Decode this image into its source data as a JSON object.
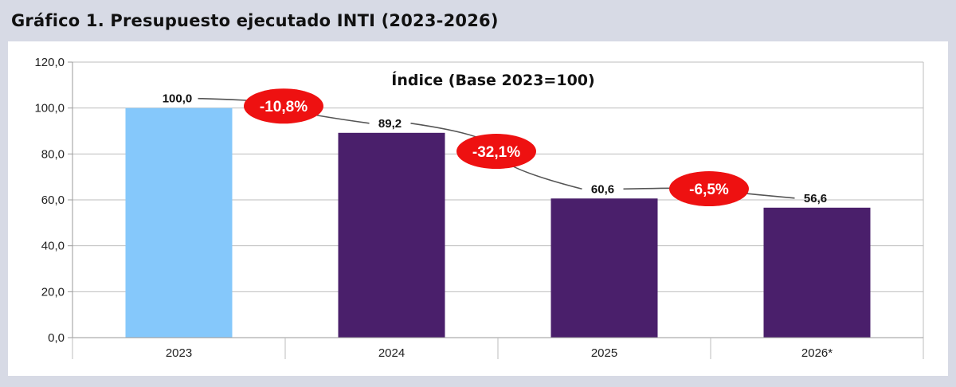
{
  "page": {
    "title": "Gráfico 1. Presupuesto ejecutado INTI (2023-2026)"
  },
  "chart_data": {
    "type": "bar",
    "title": "Índice (Base 2023=100)",
    "xlabel": "",
    "ylabel": "",
    "categories": [
      "2023",
      "2024",
      "2025",
      "2026*"
    ],
    "values": [
      100.0,
      89.2,
      60.6,
      56.6
    ],
    "value_labels": [
      "100,0",
      "89,2",
      "60,6",
      "56,6"
    ],
    "ylim": [
      0,
      120
    ],
    "yticks": [
      0,
      20,
      40,
      60,
      80,
      100,
      120
    ],
    "ytick_labels": [
      "0,0",
      "20,0",
      "40,0",
      "60,0",
      "80,0",
      "100,0",
      "120,0"
    ],
    "bar_colors": [
      "#85c8fb",
      "#4a1f6b",
      "#4a1f6b",
      "#4a1f6b"
    ],
    "grid": true,
    "annotations": [
      {
        "from": 0,
        "to": 1,
        "label": "-10,8%",
        "color": "#ee1111"
      },
      {
        "from": 1,
        "to": 2,
        "label": "-32,1%",
        "color": "#ee1111"
      },
      {
        "from": 2,
        "to": 3,
        "label": "-6,5%",
        "color": "#ee1111"
      }
    ]
  }
}
